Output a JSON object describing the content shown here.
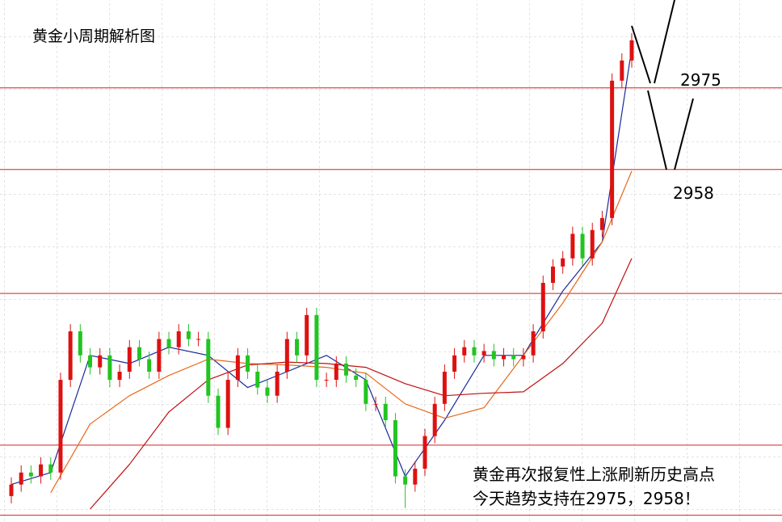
{
  "chart_data": {
    "type": "candlestick",
    "title": "黄金小周期解析图",
    "annotation": [
      "黄金再次报复性上涨刷新历史高点",
      "今天趋势支持在2975，2958！"
    ],
    "ylim": [
      2884.6,
      2993.3
    ],
    "up_color": "#dd1111",
    "down_color": "#22c422",
    "open": [
      2890.0,
      2892.4,
      2894.9,
      2894.1,
      2896.6,
      2894.9,
      2914.2,
      2924.3,
      2919.3,
      2916.8,
      2919.3,
      2914.2,
      2915.9,
      2921.0,
      2918.5,
      2915.9,
      2922.7,
      2921.0,
      2924.3,
      2922.7,
      2922.7,
      2910.9,
      2904.2,
      2914.2,
      2919.3,
      2915.9,
      2912.6,
      2910.9,
      2915.9,
      2922.7,
      2919.3,
      2927.7,
      2914.2,
      2914.2,
      2917.6,
      2915.1,
      2914.2,
      2909.2,
      2909.2,
      2905.8,
      2894.1,
      2892.4,
      2895.7,
      2902.5,
      2909.2,
      2915.9,
      2919.3,
      2921.0,
      2919.3,
      2920.2,
      2918.5,
      2919.3,
      2918.5,
      2919.3,
      2924.3,
      2934.4,
      2937.8,
      2939.5,
      2944.6,
      2939.5,
      2945.4,
      2947.9,
      2976.5,
      2980.7
    ],
    "high": [
      2893.9,
      2896.4,
      2896.4,
      2898.1,
      2898.1,
      2915.7,
      2925.8,
      2925.8,
      2920.8,
      2920.8,
      2920.8,
      2917.4,
      2922.5,
      2922.5,
      2920.0,
      2924.2,
      2924.2,
      2925.8,
      2925.8,
      2924.2,
      2924.2,
      2912.4,
      2915.7,
      2920.8,
      2920.8,
      2917.4,
      2914.1,
      2917.4,
      2924.2,
      2924.2,
      2929.2,
      2929.2,
      2915.7,
      2919.1,
      2919.1,
      2916.6,
      2915.7,
      2910.7,
      2910.7,
      2907.3,
      2895.6,
      2897.2,
      2904.0,
      2910.7,
      2917.4,
      2920.8,
      2922.5,
      2922.5,
      2921.7,
      2921.7,
      2920.8,
      2920.8,
      2920.8,
      2925.8,
      2935.9,
      2939.3,
      2941.0,
      2946.1,
      2946.1,
      2946.9,
      2949.4,
      2978.0,
      2982.2,
      2986.4
    ],
    "low": [
      2888.5,
      2890.9,
      2892.6,
      2892.6,
      2893.4,
      2893.4,
      2912.7,
      2917.8,
      2915.3,
      2915.3,
      2912.7,
      2912.7,
      2914.4,
      2917.0,
      2914.4,
      2914.4,
      2919.5,
      2919.5,
      2921.2,
      2921.2,
      2909.4,
      2902.7,
      2902.7,
      2912.7,
      2914.4,
      2911.1,
      2909.4,
      2909.4,
      2914.4,
      2917.8,
      2917.8,
      2912.7,
      2912.7,
      2912.7,
      2913.6,
      2912.7,
      2907.7,
      2907.7,
      2904.3,
      2892.6,
      2887.5,
      2890.9,
      2894.2,
      2901.0,
      2907.7,
      2914.4,
      2917.8,
      2917.8,
      2917.8,
      2917.0,
      2917.0,
      2917.0,
      2917.0,
      2917.8,
      2922.8,
      2932.9,
      2936.3,
      2938.0,
      2938.0,
      2938.0,
      2943.9,
      2946.4,
      2975.0,
      2979.2
    ],
    "close": [
      2892.4,
      2894.9,
      2894.1,
      2896.6,
      2894.9,
      2914.2,
      2924.3,
      2919.3,
      2916.8,
      2919.3,
      2914.2,
      2915.9,
      2921.0,
      2918.5,
      2915.9,
      2922.7,
      2921.0,
      2924.3,
      2922.7,
      2922.7,
      2910.9,
      2904.2,
      2914.2,
      2919.3,
      2915.9,
      2912.6,
      2910.9,
      2915.9,
      2922.7,
      2919.3,
      2927.7,
      2914.2,
      2914.2,
      2917.6,
      2915.1,
      2914.2,
      2909.2,
      2909.2,
      2905.8,
      2894.1,
      2892.4,
      2895.7,
      2902.5,
      2909.2,
      2915.9,
      2919.3,
      2921.0,
      2919.3,
      2920.2,
      2918.5,
      2919.3,
      2918.5,
      2919.3,
      2924.3,
      2934.4,
      2937.8,
      2939.5,
      2944.6,
      2939.5,
      2945.4,
      2947.9,
      2976.5,
      2980.7,
      2984.9
    ],
    "series": [
      {
        "color": "#1a2a9a",
        "x": [
          0,
          4,
          8,
          12,
          16,
          20,
          24,
          28,
          32,
          36,
          40,
          44,
          48,
          52,
          56,
          60,
          63
        ],
        "values": [
          2892.4,
          2894.9,
          2919.3,
          2917.6,
          2921.0,
          2919.3,
          2912.6,
          2915.9,
          2919.3,
          2914.2,
          2894.1,
          2905.8,
          2919.3,
          2919.3,
          2932.7,
          2942.9,
          2983.2
        ]
      },
      {
        "color": "#e8681a",
        "x": [
          4,
          8,
          12,
          16,
          20,
          24,
          28,
          32,
          36,
          40,
          44,
          48,
          52,
          56,
          60,
          63
        ],
        "values": [
          2890.7,
          2905.0,
          2910.9,
          2915.1,
          2918.5,
          2917.6,
          2917.3,
          2916.8,
          2915.6,
          2909.2,
          2906.2,
          2908.4,
          2919.3,
          2930.2,
          2942.9,
          2957.7
        ]
      },
      {
        "color": "#c01010",
        "x": [
          8,
          12,
          16,
          20,
          24,
          28,
          32,
          36,
          40,
          44,
          48,
          52,
          56,
          60,
          63
        ],
        "values": [
          2887.3,
          2896.6,
          2907.5,
          2914.2,
          2917.3,
          2917.9,
          2917.6,
          2916.8,
          2913.4,
          2910.9,
          2911.4,
          2911.7,
          2917.6,
          2926.0,
          2939.5
        ]
      }
    ],
    "levels": {
      "color": "#d42020",
      "values": [
        2975,
        2958,
        2932.2,
        2900.6,
        2886
      ]
    }
  }
}
